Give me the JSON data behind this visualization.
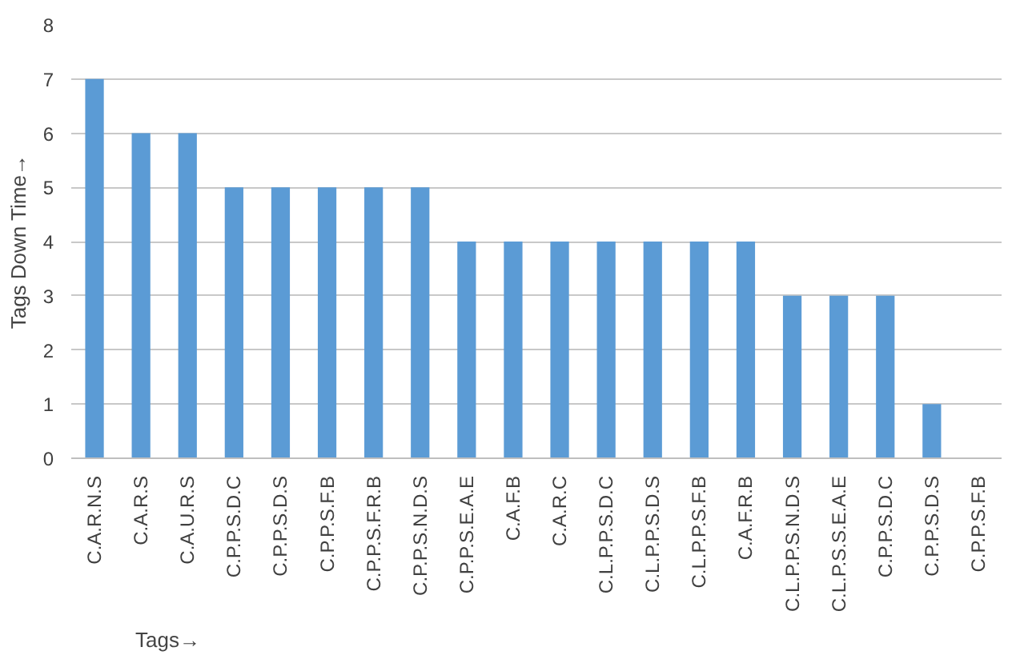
{
  "chart_data": {
    "type": "bar",
    "xlabel": "Tags→",
    "ylabel": "Tags Down Time→",
    "categories": [
      "C.A.R.N.S",
      "C.A.R.S",
      "C.A.U.R.S",
      "C.P.P.S.D.C",
      "C.P.P.S.D.S",
      "C.P.P.S.F.B",
      "C.P.P.S.F.R.B",
      "C.P.P.S.N.D.S",
      "C.P.P.S.E.A.E",
      "C.A.F.B",
      "C.A.R.C",
      "C.L.P.P.S.D.C",
      "C.L.P.P.S.D.S",
      "C.L.P.P.S.F.B",
      "C.A.F.R.B",
      "C.L.P.P.S.N.D.S",
      "C.L.P.S.S.E.A.E",
      "C.P.P.S.D.C",
      "C.P.P.S.D.S",
      "C.P.P.S.F.B"
    ],
    "values": [
      7,
      6,
      6,
      5,
      5,
      5,
      5,
      5,
      4,
      4,
      4,
      4,
      4,
      4,
      4,
      3,
      3,
      3,
      1,
      0
    ],
    "color": "#5b9bd5",
    "ylim": [
      0,
      8
    ],
    "yticks": [
      0,
      1,
      2,
      3,
      4,
      5,
      6,
      7,
      8
    ],
    "grid": "y"
  }
}
